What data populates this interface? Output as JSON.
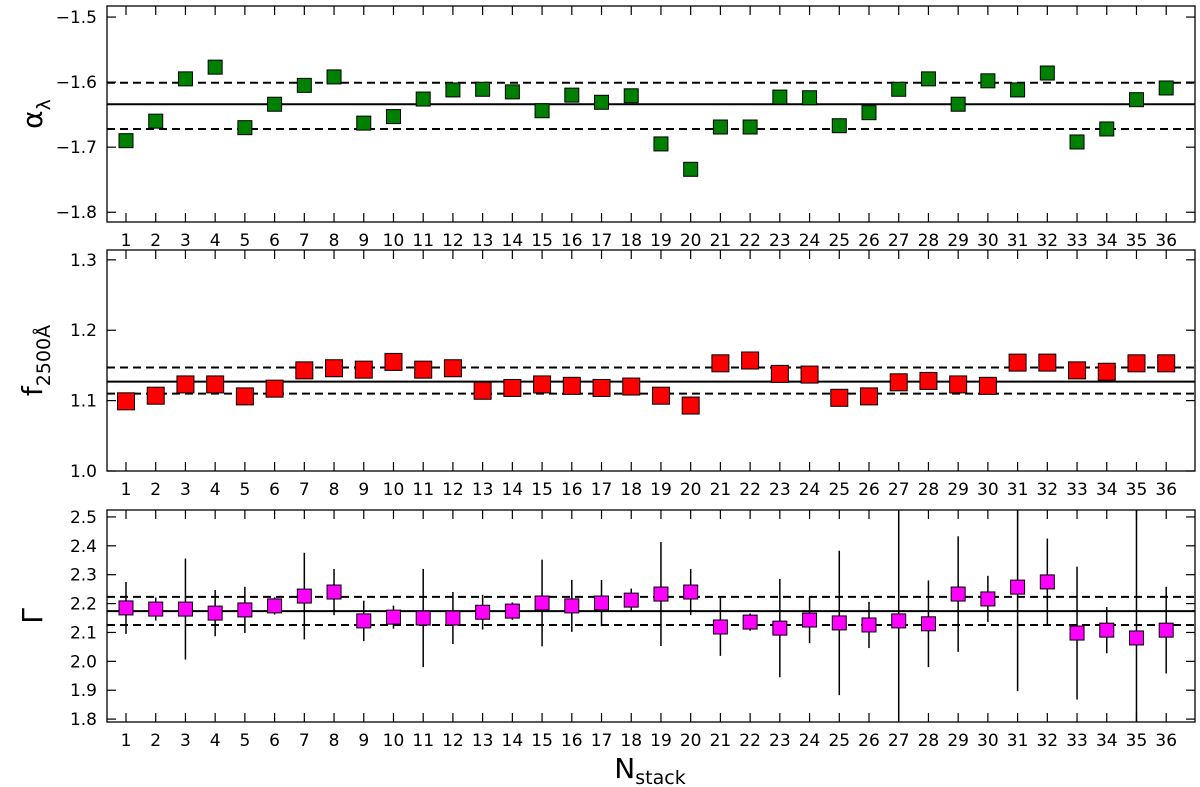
{
  "chart_data": [
    {
      "type": "scatter",
      "ylabel": "α",
      "ylabel_sub": "λ",
      "color": "#008000",
      "categories": [
        "1",
        "2",
        "3",
        "4",
        "5",
        "6",
        "7",
        "8",
        "9",
        "10",
        "11",
        "12",
        "13",
        "14",
        "15",
        "16",
        "17",
        "18",
        "19",
        "20",
        "21",
        "22",
        "23",
        "24",
        "25",
        "26",
        "27",
        "28",
        "29",
        "30",
        "31",
        "32",
        "33",
        "34",
        "35",
        "36"
      ],
      "values": [
        -1.69,
        -1.66,
        -1.595,
        -1.577,
        -1.67,
        -1.634,
        -1.605,
        -1.592,
        -1.663,
        -1.653,
        -1.626,
        -1.612,
        -1.611,
        -1.615,
        -1.644,
        -1.62,
        -1.631,
        -1.621,
        -1.695,
        -1.734,
        -1.669,
        -1.669,
        -1.623,
        -1.624,
        -1.667,
        -1.647,
        -1.611,
        -1.595,
        -1.634,
        -1.598,
        -1.612,
        -1.586,
        -1.692,
        -1.672,
        -1.627,
        -1.609
      ],
      "ylim": [
        -1.815,
        -1.483
      ],
      "yticks": [
        {
          "value": -1.8,
          "label": "−1.8"
        },
        {
          "value": -1.7,
          "label": "−1.7"
        },
        {
          "value": -1.6,
          "label": "−1.6"
        },
        {
          "value": -1.5,
          "label": "−1.5"
        }
      ],
      "hlines": [
        {
          "value": -1.634,
          "style": "solid"
        },
        {
          "value": -1.601,
          "style": "dashed"
        },
        {
          "value": -1.672,
          "style": "dashed"
        }
      ]
    },
    {
      "type": "scatter",
      "ylabel": "f",
      "ylabel_sub": "2500Å",
      "color": "#ff0000",
      "categories": [
        "1",
        "2",
        "3",
        "4",
        "5",
        "6",
        "7",
        "8",
        "9",
        "10",
        "11",
        "12",
        "13",
        "14",
        "15",
        "16",
        "17",
        "18",
        "19",
        "20",
        "21",
        "22",
        "23",
        "24",
        "25",
        "26",
        "27",
        "28",
        "29",
        "30",
        "31",
        "32",
        "33",
        "34",
        "35",
        "36"
      ],
      "values": [
        1.099,
        1.107,
        1.123,
        1.123,
        1.106,
        1.117,
        1.143,
        1.146,
        1.144,
        1.155,
        1.144,
        1.146,
        1.114,
        1.118,
        1.123,
        1.121,
        1.118,
        1.12,
        1.107,
        1.093,
        1.153,
        1.157,
        1.138,
        1.137,
        1.104,
        1.106,
        1.126,
        1.128,
        1.123,
        1.121,
        1.154,
        1.154,
        1.143,
        1.141,
        1.153,
        1.153
      ],
      "ylim": [
        1.0,
        1.314
      ],
      "yticks": [
        {
          "value": 1,
          "label": "1.0"
        },
        1.1,
        1.2,
        1.3
      ],
      "hlines": [
        {
          "value": 1.127,
          "style": "solid"
        },
        {
          "value": 1.147,
          "style": "dashed"
        },
        {
          "value": 1.11,
          "style": "dashed"
        }
      ]
    },
    {
      "type": "scatter",
      "ylabel": "Γ",
      "xlabel": "N",
      "xlabel_sub": "stack",
      "color": "#ff00ff",
      "categories": [
        "1",
        "2",
        "3",
        "4",
        "5",
        "6",
        "7",
        "8",
        "9",
        "10",
        "11",
        "12",
        "13",
        "14",
        "15",
        "16",
        "17",
        "18",
        "19",
        "20",
        "21",
        "22",
        "23",
        "24",
        "25",
        "26",
        "27",
        "28",
        "29",
        "30",
        "31",
        "32",
        "33",
        "34",
        "35",
        "36"
      ],
      "values": [
        2.185,
        2.181,
        2.181,
        2.167,
        2.178,
        2.192,
        2.226,
        2.24,
        2.14,
        2.153,
        2.15,
        2.15,
        2.17,
        2.174,
        2.202,
        2.192,
        2.202,
        2.212,
        2.233,
        2.24,
        2.119,
        2.136,
        2.115,
        2.143,
        2.133,
        2.126,
        2.14,
        2.13,
        2.233,
        2.216,
        2.257,
        2.275,
        2.098,
        2.108,
        2.081,
        2.108
      ],
      "errors": [
        0.09,
        0.04,
        0.175,
        0.08,
        0.08,
        0.03,
        0.15,
        0.08,
        0.07,
        0.04,
        0.17,
        0.09,
        0.06,
        0.03,
        0.15,
        0.09,
        0.08,
        0.04,
        0.18,
        0.08,
        0.1,
        0.03,
        0.17,
        0.08,
        0.25,
        0.08,
        0.4,
        0.15,
        0.2,
        0.08,
        0.36,
        0.15,
        0.23,
        0.08,
        0.45,
        0.15
      ],
      "ylim": [
        1.79,
        2.524
      ],
      "yticks": [
        1.8,
        1.9,
        {
          "value": 2,
          "label": "2.0"
        },
        2.1,
        2.2,
        2.3,
        2.4,
        2.5
      ],
      "hlines": [
        {
          "value": 2.174,
          "style": "solid"
        },
        {
          "value": 2.223,
          "style": "dashed"
        },
        {
          "value": 2.126,
          "style": "dashed"
        }
      ]
    }
  ]
}
